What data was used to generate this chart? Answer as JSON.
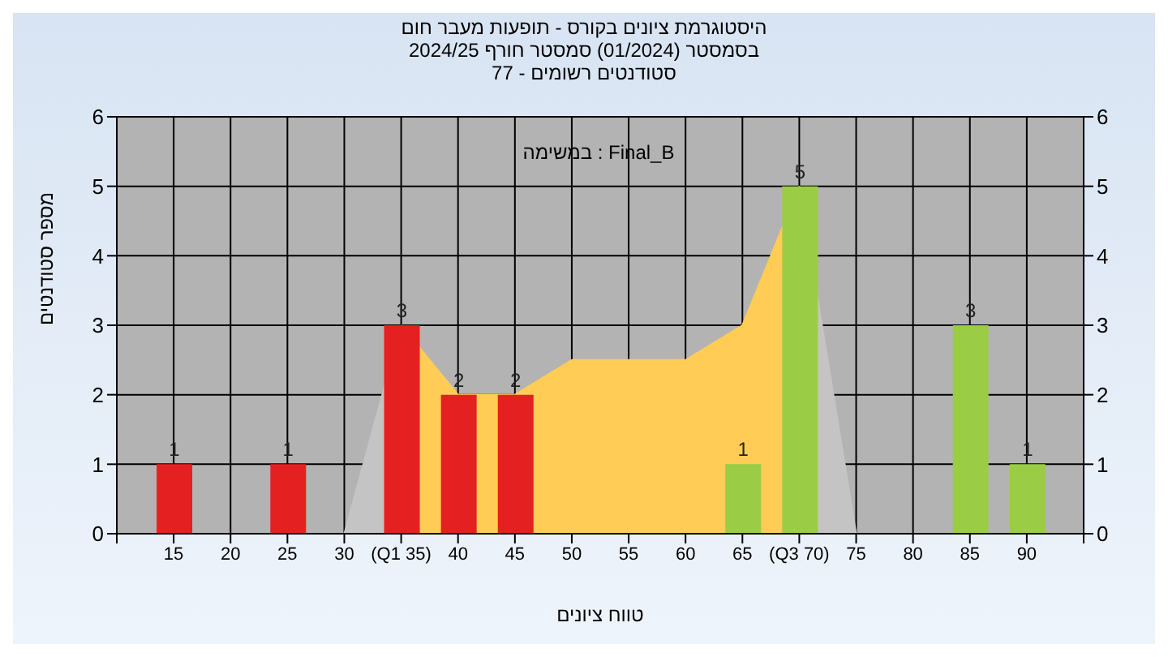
{
  "chart_data": {
    "type": "bar",
    "title": "היסטוגרמת ציונים בקורס - תופעות מעבר חום\nבסמסטר  (01/2024)  סמסטר חורף 2024/25\nסטודנטים רשומים - 77",
    "xlabel": "טווח ציונים",
    "ylabel": "מספר סטודנטים",
    "annotations": [
      "במשימה : Final_B"
    ],
    "series": [
      {
        "type": "area",
        "color": "#c4c4c4",
        "x": [
          30,
          35,
          40,
          45,
          50,
          55,
          60,
          65,
          70,
          75
        ],
        "values": [
          0,
          3,
          null,
          null,
          null,
          null,
          null,
          null,
          5,
          0
        ]
      },
      {
        "type": "area",
        "color": "#ffcc55",
        "x": [
          35,
          40,
          45,
          50,
          55,
          60,
          65,
          70
        ],
        "values": [
          3,
          2,
          2,
          2.5,
          2.5,
          2.5,
          3,
          5
        ]
      },
      {
        "type": "bar",
        "x": [
          15,
          25,
          35,
          40,
          45,
          65,
          70,
          85,
          90
        ],
        "values": [
          1,
          1,
          3,
          2,
          2,
          1,
          5,
          3,
          1
        ],
        "value_labels": [
          "1",
          "1",
          "3",
          "2",
          "2",
          "1",
          "5",
          "3",
          "1"
        ],
        "colors": [
          "#e52020",
          "#e52020",
          "#e52020",
          "#e52020",
          "#e52020",
          "#9acd45",
          "#9acd45",
          "#9acd45",
          "#9acd45"
        ]
      }
    ],
    "xlim": [
      10,
      95
    ],
    "xticks": [
      {
        "value": 10,
        "label": null
      },
      15,
      20,
      25,
      30,
      {
        "value": 35,
        "label": "(Q1 35)"
      },
      40,
      45,
      50,
      55,
      60,
      65,
      {
        "value": 70,
        "label": "(Q3 70)"
      },
      75,
      80,
      85,
      90,
      {
        "value": 95,
        "label": null
      }
    ],
    "ylim": [
      0,
      6
    ],
    "yticks": [
      0,
      1,
      2,
      3,
      4,
      5,
      6
    ],
    "y2lim": [
      0,
      6
    ],
    "y2ticks": [
      0,
      1,
      2,
      3,
      4,
      5,
      6
    ],
    "grid": true
  }
}
